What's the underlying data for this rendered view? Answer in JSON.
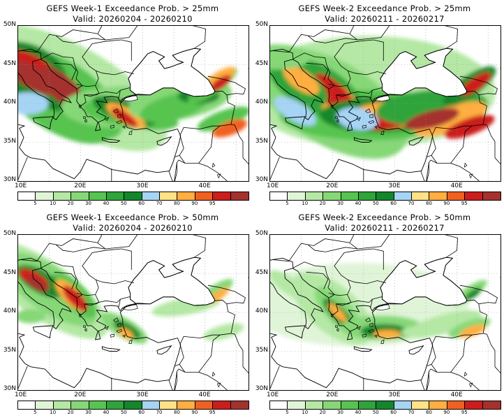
{
  "panels": [
    {
      "title": "GEFS Week-1 Exceedance Prob. > 25mm",
      "valid": "Valid: 20260204 - 20260210"
    },
    {
      "title": "GEFS Week-2 Exceedance Prob. > 25mm",
      "valid": "Valid: 20260211 - 20260217"
    },
    {
      "title": "GEFS Week-1 Exceedance Prob. > 50mm",
      "valid": "Valid: 20260204 - 20260210"
    },
    {
      "title": "GEFS Week-2 Exceedance Prob. > 50mm",
      "valid": "Valid: 20260211 - 20260217"
    }
  ],
  "lat_labels": [
    "50N",
    "45N",
    "40N",
    "35N",
    "30N"
  ],
  "lon_labels": [
    "10E",
    "20E",
    "30E",
    "40E"
  ],
  "colorbar": {
    "levels": [
      "5",
      "10",
      "20",
      "30",
      "40",
      "50",
      "60",
      "70",
      "80",
      "90",
      "95"
    ],
    "colors": [
      "#ffffff",
      "#e0f5d8",
      "#b4e8a4",
      "#86d877",
      "#56c450",
      "#2ea43a",
      "#13872c",
      "#a6d4f5",
      "#ffe285",
      "#ffae3f",
      "#f06121",
      "#cc1d1d",
      "#a5312e"
    ]
  },
  "map_colors": {
    "water": "#ffffff",
    "border": "#000000",
    "grid": "#9a9a9a"
  }
}
